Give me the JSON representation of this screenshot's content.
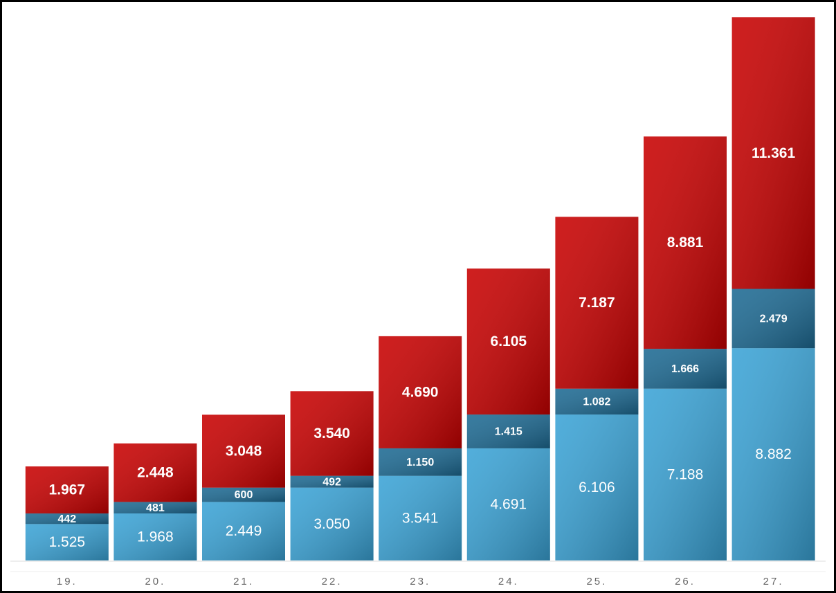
{
  "chart_data": {
    "type": "stacked-bar",
    "categories": [
      "19.",
      "20.",
      "21.",
      "22.",
      "23.",
      "24.",
      "25.",
      "26.",
      "27."
    ],
    "series": [
      {
        "color": "#3aa3d6",
        "values": [
          1525,
          1968,
          2449,
          3050,
          3541,
          4691,
          6106,
          7188,
          8882
        ],
        "value_labels": [
          "1.525",
          "1.968",
          "2.449",
          "3.050",
          "3.541",
          "4.691",
          "6.106",
          "7.188",
          "8.882"
        ]
      },
      {
        "color": "#1d6a93",
        "values": [
          442,
          481,
          600,
          492,
          1150,
          1415,
          1082,
          1666,
          2479
        ],
        "value_labels": [
          "442",
          "481",
          "600",
          "492",
          "1.150",
          "1.415",
          "1.082",
          "1.666",
          "2.479"
        ]
      },
      {
        "color": "#c80000",
        "values": [
          1967,
          2448,
          3048,
          3540,
          4690,
          6105,
          7187,
          8881,
          11361
        ],
        "value_labels": [
          "1.967",
          "2.448",
          "3.048",
          "3.540",
          "4.690",
          "6.105",
          "7.187",
          "8.881",
          "11.361"
        ]
      }
    ]
  }
}
